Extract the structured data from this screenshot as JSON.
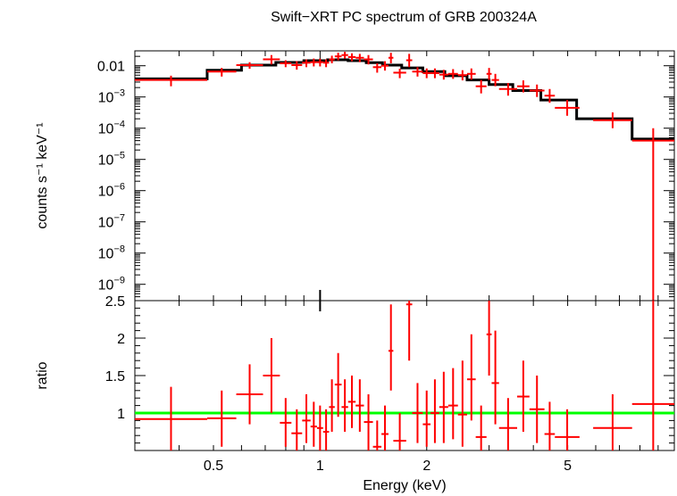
{
  "colors": {
    "data": "#ff0000",
    "model": "#000000",
    "unity": "#00ff00",
    "axis": "#000000"
  },
  "chart_data": [
    {
      "type": "scatter",
      "panel": "spectrum",
      "title": "Swift−XRT PC spectrum of GRB 200324A",
      "xlabel": "",
      "ylabel": "counts s⁻¹ keV⁻¹",
      "xscale": "log",
      "yscale": "log",
      "xlim": [
        0.3,
        10
      ],
      "ylim": [
        3e-10,
        0.03
      ],
      "y_tick_labels": [
        {
          "v": 0.01,
          "base": "0.01",
          "exp": ""
        },
        {
          "v": 0.001,
          "base": "10",
          "exp": "−3"
        },
        {
          "v": 0.0001,
          "base": "10",
          "exp": "−4"
        },
        {
          "v": 1e-05,
          "base": "10",
          "exp": "−5"
        },
        {
          "v": 1e-06,
          "base": "10",
          "exp": "−6"
        },
        {
          "v": 1e-07,
          "base": "10",
          "exp": "−7"
        },
        {
          "v": 1e-08,
          "base": "10",
          "exp": "−8"
        },
        {
          "v": 1e-09,
          "base": "10",
          "exp": "−9"
        }
      ],
      "series": [
        {
          "points": [
            [
              0.3,
              0.48,
              0.0035,
              0.0022,
              0.0048
            ],
            [
              0.48,
              0.58,
              0.0065,
              0.0045,
              0.0085
            ],
            [
              0.58,
              0.69,
              0.0105,
              0.008,
              0.013
            ],
            [
              0.69,
              0.77,
              0.016,
              0.011,
              0.022
            ],
            [
              0.77,
              0.83,
              0.012,
              0.009,
              0.015
            ],
            [
              0.83,
              0.89,
              0.0105,
              0.0075,
              0.014
            ],
            [
              0.89,
              0.94,
              0.0125,
              0.009,
              0.016
            ],
            [
              0.94,
              0.98,
              0.013,
              0.0095,
              0.017
            ],
            [
              0.98,
              1.02,
              0.013,
              0.0095,
              0.017
            ],
            [
              1.02,
              1.06,
              0.0125,
              0.009,
              0.016
            ],
            [
              1.06,
              1.1,
              0.016,
              0.012,
              0.021
            ],
            [
              1.1,
              1.15,
              0.02,
              0.015,
              0.026
            ],
            [
              1.15,
              1.2,
              0.022,
              0.017,
              0.028
            ],
            [
              1.2,
              1.26,
              0.019,
              0.014,
              0.025
            ],
            [
              1.26,
              1.33,
              0.018,
              0.013,
              0.024
            ],
            [
              1.33,
              1.41,
              0.016,
              0.011,
              0.022
            ],
            [
              1.41,
              1.49,
              0.009,
              0.006,
              0.012
            ],
            [
              1.49,
              1.56,
              0.01,
              0.007,
              0.014
            ],
            [
              1.56,
              1.61,
              0.018,
              0.012,
              0.026
            ],
            [
              1.61,
              1.75,
              0.006,
              0.004,
              0.008
            ],
            [
              1.75,
              1.82,
              0.015,
              0.009,
              0.024
            ],
            [
              1.82,
              1.95,
              0.0065,
              0.0045,
              0.009
            ],
            [
              1.95,
              2.05,
              0.0058,
              0.004,
              0.0082
            ],
            [
              2.05,
              2.17,
              0.0058,
              0.004,
              0.0082
            ],
            [
              2.17,
              2.3,
              0.0052,
              0.0036,
              0.0074
            ],
            [
              2.3,
              2.45,
              0.0055,
              0.0038,
              0.0078
            ],
            [
              2.45,
              2.6,
              0.005,
              0.0034,
              0.0072
            ],
            [
              2.6,
              2.75,
              0.0055,
              0.0036,
              0.0082
            ],
            [
              2.75,
              2.95,
              0.0022,
              0.0013,
              0.0035
            ],
            [
              2.95,
              3.05,
              0.0055,
              0.0035,
              0.0085
            ],
            [
              3.05,
              3.2,
              0.0035,
              0.0022,
              0.0055
            ],
            [
              3.2,
              3.6,
              0.0018,
              0.0011,
              0.0028
            ],
            [
              3.6,
              3.9,
              0.0022,
              0.0014,
              0.0034
            ],
            [
              3.9,
              4.3,
              0.0016,
              0.001,
              0.0025
            ],
            [
              4.3,
              4.6,
              0.0011,
              0.00065,
              0.0018
            ],
            [
              4.6,
              5.4,
              0.00045,
              0.00025,
              0.0008
            ],
            [
              5.9,
              7.6,
              0.00018,
              0.0001,
              0.00032
            ],
            [
              7.6,
              10,
              4e-05,
              3e-10,
              0.0001
            ]
          ]
        }
      ],
      "model_steps": [
        [
          0.3,
          0.48,
          0.0038
        ],
        [
          0.48,
          0.6,
          0.0072
        ],
        [
          0.6,
          0.75,
          0.0105
        ],
        [
          0.75,
          0.9,
          0.0128
        ],
        [
          0.9,
          1.05,
          0.0145
        ],
        [
          1.05,
          1.2,
          0.0155
        ],
        [
          1.2,
          1.35,
          0.0145
        ],
        [
          1.35,
          1.5,
          0.0125
        ],
        [
          1.5,
          1.7,
          0.0105
        ],
        [
          1.7,
          1.95,
          0.0085
        ],
        [
          1.95,
          2.25,
          0.0065
        ],
        [
          2.25,
          2.6,
          0.0048
        ],
        [
          2.6,
          3.0,
          0.0035
        ],
        [
          3.0,
          3.5,
          0.0025
        ],
        [
          3.5,
          4.2,
          0.0016
        ],
        [
          4.2,
          5.3,
          0.0008
        ],
        [
          5.3,
          7.6,
          0.0002
        ],
        [
          7.6,
          10,
          4.5e-05
        ]
      ]
    },
    {
      "type": "scatter",
      "panel": "ratio",
      "xlabel": "Energy (keV)",
      "ylabel": "ratio",
      "xscale": "log",
      "xlim": [
        0.3,
        10
      ],
      "ylim": [
        0.5,
        2.5
      ],
      "x_tick_labels": [
        {
          "v": 0.5,
          "label": "0.5"
        },
        {
          "v": 1,
          "label": "1"
        },
        {
          "v": 2,
          "label": "2"
        },
        {
          "v": 5,
          "label": "5"
        }
      ],
      "y_tick_labels": [
        {
          "v": 1,
          "label": "1"
        },
        {
          "v": 1.5,
          "label": "1.5"
        },
        {
          "v": 2,
          "label": "2"
        },
        {
          "v": 2.5,
          "label": "2.5"
        }
      ],
      "reference_line": 1,
      "series": [
        {
          "points": [
            [
              0.3,
              0.48,
              0.92,
              0.5,
              1.35
            ],
            [
              0.48,
              0.58,
              0.93,
              0.55,
              1.3
            ],
            [
              0.58,
              0.69,
              1.25,
              0.85,
              1.65
            ],
            [
              0.69,
              0.77,
              1.5,
              1.0,
              2.0
            ],
            [
              0.77,
              0.83,
              0.87,
              0.55,
              1.2
            ],
            [
              0.83,
              0.89,
              0.73,
              0.5,
              1.05
            ],
            [
              0.89,
              0.94,
              0.9,
              0.6,
              1.25
            ],
            [
              0.94,
              0.98,
              0.82,
              0.55,
              1.15
            ],
            [
              0.98,
              1.02,
              0.8,
              0.5,
              1.1
            ],
            [
              1.02,
              1.06,
              0.75,
              0.5,
              1.05
            ],
            [
              1.06,
              1.1,
              1.08,
              0.75,
              1.45
            ],
            [
              1.1,
              1.15,
              1.38,
              0.95,
              1.8
            ],
            [
              1.15,
              1.2,
              1.08,
              0.75,
              1.45
            ],
            [
              1.2,
              1.26,
              1.15,
              0.8,
              1.5
            ],
            [
              1.26,
              1.33,
              1.1,
              0.75,
              1.45
            ],
            [
              1.33,
              1.41,
              0.88,
              0.5,
              1.25
            ],
            [
              1.41,
              1.49,
              0.55,
              0.5,
              0.9
            ],
            [
              1.49,
              1.56,
              0.72,
              0.5,
              1.1
            ],
            [
              1.56,
              1.61,
              1.83,
              1.3,
              2.45
            ],
            [
              1.61,
              1.75,
              0.63,
              0.5,
              1.0
            ],
            [
              1.75,
              1.82,
              2.45,
              1.7,
              2.5
            ],
            [
              1.82,
              1.95,
              1.0,
              0.6,
              1.4
            ],
            [
              1.95,
              2.05,
              0.85,
              0.55,
              1.3
            ],
            [
              2.05,
              2.17,
              1.0,
              0.6,
              1.45
            ],
            [
              2.17,
              2.3,
              1.08,
              0.6,
              1.55
            ],
            [
              2.3,
              2.45,
              1.1,
              0.65,
              1.6
            ],
            [
              2.45,
              2.6,
              0.98,
              0.55,
              1.7
            ],
            [
              2.6,
              2.75,
              1.45,
              0.9,
              2.05
            ],
            [
              2.75,
              2.95,
              0.68,
              0.5,
              1.1
            ],
            [
              2.95,
              3.05,
              2.05,
              1.5,
              2.5
            ],
            [
              3.05,
              3.2,
              1.4,
              0.85,
              2.1
            ],
            [
              3.2,
              3.6,
              0.8,
              0.5,
              1.2
            ],
            [
              3.6,
              3.9,
              1.22,
              0.75,
              1.7
            ],
            [
              3.9,
              4.3,
              1.05,
              0.6,
              1.5
            ],
            [
              4.3,
              4.6,
              0.72,
              0.5,
              1.15
            ],
            [
              4.6,
              5.4,
              0.68,
              0.5,
              1.05
            ],
            [
              5.9,
              7.6,
              0.8,
              0.5,
              1.25
            ],
            [
              7.6,
              10,
              1.12,
              0.5,
              2.5
            ]
          ]
        }
      ]
    }
  ]
}
